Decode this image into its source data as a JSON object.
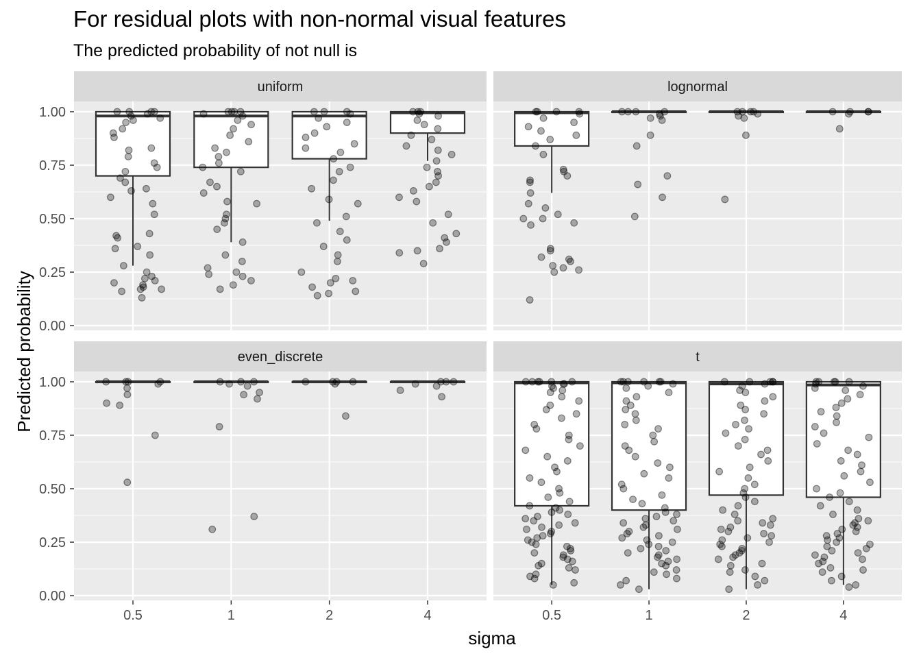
{
  "title": "For residual plots with non-normal visual features",
  "subtitle": "The predicted probability of not null is",
  "colors": {
    "panel_bg": "#ebebeb",
    "strip_bg": "#d9d9d9",
    "grid": "#ffffff",
    "box_fill": "#ffffff",
    "box_stroke": "#333333",
    "point": "#000000",
    "text": "#4d4d4d"
  },
  "chart_data": {
    "type": "box+jitter",
    "xlabel": "sigma",
    "ylabel": "Predicted probability",
    "categories": [
      "0.5",
      "1",
      "2",
      "4"
    ],
    "ylim": [
      0,
      1.05
    ],
    "yticks": [
      "0.00",
      "0.25",
      "0.50",
      "0.75",
      "1.00"
    ],
    "grid": true,
    "facets": [
      {
        "name": "uniform",
        "boxes": [
          {
            "x": "0.5",
            "q1": 0.7,
            "median": 0.98,
            "q3": 1.0,
            "whisker_low": 0.28,
            "whisker_high": 1.0
          },
          {
            "x": "1",
            "q1": 0.74,
            "median": 0.98,
            "q3": 1.0,
            "whisker_low": 0.39,
            "whisker_high": 1.0
          },
          {
            "x": "2",
            "q1": 0.78,
            "median": 0.98,
            "q3": 1.0,
            "whisker_low": 0.49,
            "whisker_high": 1.0
          },
          {
            "x": "4",
            "q1": 0.9,
            "median": 0.995,
            "q3": 1.0,
            "whisker_low": 0.77,
            "whisker_high": 1.0
          }
        ],
        "points": [
          {
            "x": "0.5",
            "values": [
              0.13,
              0.16,
              0.17,
              0.17,
              0.18,
              0.19,
              0.2,
              0.21,
              0.22,
              0.23,
              0.25,
              0.28,
              0.33,
              0.36,
              0.37,
              0.41,
              0.42,
              0.43,
              0.52,
              0.57,
              0.6,
              0.63,
              0.64,
              0.67,
              0.69,
              0.72,
              0.74,
              0.76,
              0.79,
              0.82,
              0.83,
              0.88,
              0.9,
              0.92,
              0.95,
              0.96,
              0.97,
              0.98,
              0.99,
              1.0,
              1.0,
              1.0,
              1.0
            ]
          },
          {
            "x": "1",
            "values": [
              0.17,
              0.19,
              0.21,
              0.23,
              0.24,
              0.25,
              0.27,
              0.3,
              0.33,
              0.39,
              0.45,
              0.48,
              0.5,
              0.52,
              0.57,
              0.58,
              0.62,
              0.65,
              0.67,
              0.72,
              0.74,
              0.76,
              0.79,
              0.81,
              0.83,
              0.86,
              0.89,
              0.92,
              0.94,
              0.96,
              0.98,
              0.99,
              1.0,
              1.0,
              1.0,
              1.0
            ]
          },
          {
            "x": "2",
            "values": [
              0.14,
              0.15,
              0.16,
              0.18,
              0.2,
              0.21,
              0.22,
              0.25,
              0.3,
              0.33,
              0.37,
              0.4,
              0.44,
              0.48,
              0.51,
              0.57,
              0.59,
              0.64,
              0.68,
              0.72,
              0.74,
              0.78,
              0.81,
              0.83,
              0.85,
              0.88,
              0.9,
              0.93,
              0.95,
              0.97,
              0.99,
              1.0,
              1.0,
              1.0
            ]
          },
          {
            "x": "4",
            "values": [
              0.29,
              0.34,
              0.35,
              0.36,
              0.39,
              0.41,
              0.43,
              0.48,
              0.52,
              0.58,
              0.6,
              0.63,
              0.65,
              0.67,
              0.7,
              0.72,
              0.74,
              0.77,
              0.8,
              0.82,
              0.84,
              0.87,
              0.89,
              0.92,
              0.94,
              0.96,
              0.98,
              0.99,
              1.0,
              1.0,
              1.0
            ]
          }
        ]
      },
      {
        "name": "lognormal",
        "boxes": [
          {
            "x": "0.5",
            "q1": 0.84,
            "median": 0.995,
            "q3": 1.0,
            "whisker_low": 0.62,
            "whisker_high": 1.0
          },
          {
            "x": "1",
            "q1": 0.999,
            "median": 1.0,
            "q3": 1.0,
            "whisker_low": 0.997,
            "whisker_high": 1.0
          },
          {
            "x": "2",
            "q1": 0.999,
            "median": 1.0,
            "q3": 1.0,
            "whisker_low": 0.998,
            "whisker_high": 1.0
          },
          {
            "x": "4",
            "q1": 0.999,
            "median": 1.0,
            "q3": 1.0,
            "whisker_low": 0.998,
            "whisker_high": 1.0
          }
        ],
        "points": [
          {
            "x": "0.5",
            "values": [
              0.12,
              0.25,
              0.26,
              0.27,
              0.28,
              0.3,
              0.31,
              0.32,
              0.35,
              0.36,
              0.47,
              0.48,
              0.5,
              0.5,
              0.52,
              0.55,
              0.57,
              0.62,
              0.67,
              0.68,
              0.7,
              0.72,
              0.73,
              0.8,
              0.84,
              0.87,
              0.89,
              0.91,
              0.93,
              0.95,
              0.97,
              0.99,
              1.0,
              1.0,
              1.0,
              1.0
            ]
          },
          {
            "x": "1",
            "values": [
              0.51,
              0.6,
              0.66,
              0.7,
              0.84,
              0.89,
              0.96,
              0.97,
              0.98,
              0.99,
              1.0,
              1.0,
              1.0,
              1.0
            ]
          },
          {
            "x": "2",
            "values": [
              0.59,
              0.89,
              0.97,
              0.98,
              0.99,
              1.0,
              1.0,
              1.0,
              1.0
            ]
          },
          {
            "x": "4",
            "values": [
              0.92,
              0.99,
              1.0,
              1.0,
              1.0,
              1.0
            ]
          }
        ]
      },
      {
        "name": "even_discrete",
        "boxes": [
          {
            "x": "0.5",
            "q1": 0.9995,
            "median": 1.0,
            "q3": 1.0,
            "whisker_low": 0.999,
            "whisker_high": 1.0
          },
          {
            "x": "1",
            "q1": 0.9995,
            "median": 1.0,
            "q3": 1.0,
            "whisker_low": 0.999,
            "whisker_high": 1.0
          },
          {
            "x": "2",
            "q1": 0.9995,
            "median": 1.0,
            "q3": 1.0,
            "whisker_low": 0.999,
            "whisker_high": 1.0
          },
          {
            "x": "4",
            "q1": 0.9995,
            "median": 1.0,
            "q3": 1.0,
            "whisker_low": 0.999,
            "whisker_high": 1.0
          }
        ],
        "points": [
          {
            "x": "0.5",
            "values": [
              0.53,
              0.75,
              0.89,
              0.9,
              0.94,
              0.97,
              0.99,
              1.0,
              1.0,
              1.0,
              1.0
            ]
          },
          {
            "x": "1",
            "values": [
              0.31,
              0.37,
              0.79,
              0.92,
              0.94,
              0.95,
              0.98,
              0.99,
              1.0,
              1.0,
              1.0
            ]
          },
          {
            "x": "2",
            "values": [
              0.84,
              0.99,
              1.0,
              1.0,
              1.0,
              1.0
            ]
          },
          {
            "x": "4",
            "values": [
              0.93,
              0.96,
              0.98,
              0.99,
              1.0,
              1.0,
              1.0
            ]
          }
        ]
      },
      {
        "name": "t",
        "boxes": [
          {
            "x": "0.5",
            "q1": 0.42,
            "median": 0.995,
            "q3": 1.0,
            "whisker_low": 0.05,
            "whisker_high": 1.0
          },
          {
            "x": "1",
            "q1": 0.4,
            "median": 0.995,
            "q3": 1.0,
            "whisker_low": 0.03,
            "whisker_high": 1.0
          },
          {
            "x": "2",
            "q1": 0.47,
            "median": 0.99,
            "q3": 1.0,
            "whisker_low": 0.03,
            "whisker_high": 1.0
          },
          {
            "x": "4",
            "q1": 0.46,
            "median": 0.985,
            "q3": 1.0,
            "whisker_low": 0.05,
            "whisker_high": 1.0
          }
        ],
        "points": [
          {
            "x": "0.5",
            "values": [
              0.05,
              0.06,
              0.08,
              0.09,
              0.1,
              0.12,
              0.13,
              0.14,
              0.15,
              0.16,
              0.17,
              0.18,
              0.19,
              0.2,
              0.21,
              0.22,
              0.23,
              0.24,
              0.25,
              0.26,
              0.27,
              0.28,
              0.29,
              0.3,
              0.31,
              0.32,
              0.33,
              0.34,
              0.35,
              0.36,
              0.37,
              0.38,
              0.39,
              0.4,
              0.41,
              0.42,
              0.44,
              0.46,
              0.48,
              0.5,
              0.53,
              0.55,
              0.58,
              0.6,
              0.63,
              0.65,
              0.68,
              0.7,
              0.73,
              0.75,
              0.78,
              0.8,
              0.83,
              0.85,
              0.87,
              0.89,
              0.91,
              0.93,
              0.95,
              0.96,
              0.97,
              0.98,
              0.99,
              0.99,
              1.0,
              1.0,
              1.0,
              1.0,
              1.0,
              1.0
            ]
          },
          {
            "x": "1",
            "values": [
              0.03,
              0.05,
              0.07,
              0.08,
              0.1,
              0.11,
              0.12,
              0.14,
              0.15,
              0.16,
              0.17,
              0.18,
              0.19,
              0.2,
              0.21,
              0.22,
              0.23,
              0.24,
              0.25,
              0.26,
              0.27,
              0.28,
              0.29,
              0.3,
              0.31,
              0.32,
              0.33,
              0.34,
              0.35,
              0.36,
              0.37,
              0.38,
              0.39,
              0.41,
              0.43,
              0.45,
              0.47,
              0.5,
              0.52,
              0.55,
              0.57,
              0.6,
              0.62,
              0.65,
              0.68,
              0.7,
              0.72,
              0.75,
              0.78,
              0.8,
              0.82,
              0.85,
              0.87,
              0.89,
              0.91,
              0.93,
              0.95,
              0.97,
              0.98,
              0.99,
              1.0,
              1.0,
              1.0,
              1.0,
              1.0,
              1.0
            ]
          },
          {
            "x": "2",
            "values": [
              0.03,
              0.05,
              0.07,
              0.09,
              0.11,
              0.12,
              0.14,
              0.15,
              0.17,
              0.18,
              0.19,
              0.2,
              0.21,
              0.22,
              0.23,
              0.24,
              0.25,
              0.26,
              0.27,
              0.28,
              0.29,
              0.3,
              0.31,
              0.32,
              0.33,
              0.34,
              0.35,
              0.36,
              0.38,
              0.4,
              0.42,
              0.44,
              0.46,
              0.48,
              0.5,
              0.52,
              0.55,
              0.58,
              0.6,
              0.63,
              0.66,
              0.68,
              0.7,
              0.73,
              0.76,
              0.78,
              0.8,
              0.82,
              0.85,
              0.87,
              0.89,
              0.91,
              0.93,
              0.95,
              0.96,
              0.98,
              0.99,
              1.0,
              1.0,
              1.0,
              1.0,
              1.0
            ]
          },
          {
            "x": "4",
            "values": [
              0.04,
              0.05,
              0.07,
              0.09,
              0.11,
              0.12,
              0.13,
              0.15,
              0.16,
              0.17,
              0.18,
              0.19,
              0.2,
              0.21,
              0.22,
              0.23,
              0.24,
              0.25,
              0.26,
              0.27,
              0.28,
              0.29,
              0.3,
              0.31,
              0.32,
              0.33,
              0.34,
              0.35,
              0.36,
              0.38,
              0.4,
              0.42,
              0.44,
              0.46,
              0.48,
              0.5,
              0.53,
              0.56,
              0.58,
              0.61,
              0.63,
              0.66,
              0.68,
              0.71,
              0.74,
              0.76,
              0.79,
              0.81,
              0.84,
              0.86,
              0.88,
              0.9,
              0.92,
              0.94,
              0.96,
              0.97,
              0.98,
              0.99,
              1.0,
              1.0,
              1.0,
              1.0,
              1.0
            ]
          }
        ]
      }
    ]
  }
}
